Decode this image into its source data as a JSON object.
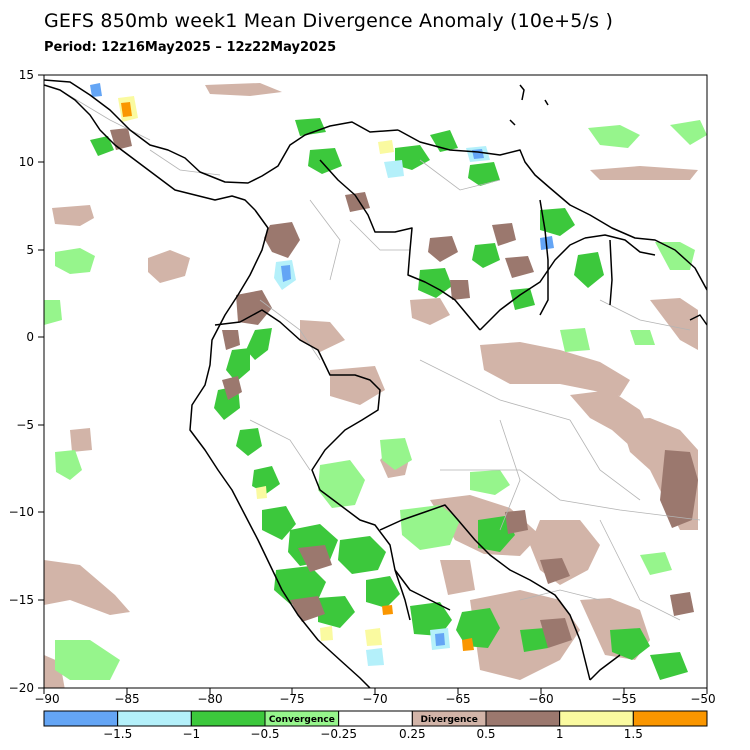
{
  "title": "GEFS 850mb week1 Mean Divergence Anomaly (10e+5/s )",
  "period": "Period: 12z16May2025 – 12z22May2025",
  "axes": {
    "lon_range": [
      -90,
      -50
    ],
    "lat_range": [
      -20,
      15
    ],
    "lon_ticks": [
      "−90",
      "−85",
      "−80",
      "−75",
      "−70",
      "−65",
      "−60",
      "−55",
      "−50"
    ],
    "lat_ticks": [
      "15",
      "10",
      "5",
      "0",
      "−5",
      "−10",
      "−15",
      "−20"
    ]
  },
  "colorbar": {
    "bins": [
      {
        "color": "#64a5f5",
        "label": ""
      },
      {
        "color": "#b4f0fa",
        "label": ""
      },
      {
        "color": "#3cc83c",
        "label": ""
      },
      {
        "color": "#96f58c",
        "label": "Convergence"
      },
      {
        "color": "#ffffff",
        "label": ""
      },
      {
        "color": "#d2b4a8",
        "label": "Divergence"
      },
      {
        "color": "#9b786e",
        "label": ""
      },
      {
        "color": "#fafaa0",
        "label": ""
      },
      {
        "color": "#fa9600",
        "label": ""
      }
    ],
    "tick_labels": [
      "−1.5",
      "−1",
      "−0.5",
      "−0.25",
      "0.25",
      "0.5",
      "1",
      "1.5"
    ]
  },
  "colors": {
    "strong_convergence": "#64a5f5",
    "convergence_1": "#b4f0fa",
    "convergence_2": "#3cc83c",
    "weak_convergence": "#96f58c",
    "weak_divergence": "#d2b4a8",
    "divergence_2": "#9b786e",
    "divergence_1": "#fafaa0",
    "strong_divergence": "#fa9600",
    "border": "#000000",
    "state_border": "#b4b4b4"
  }
}
